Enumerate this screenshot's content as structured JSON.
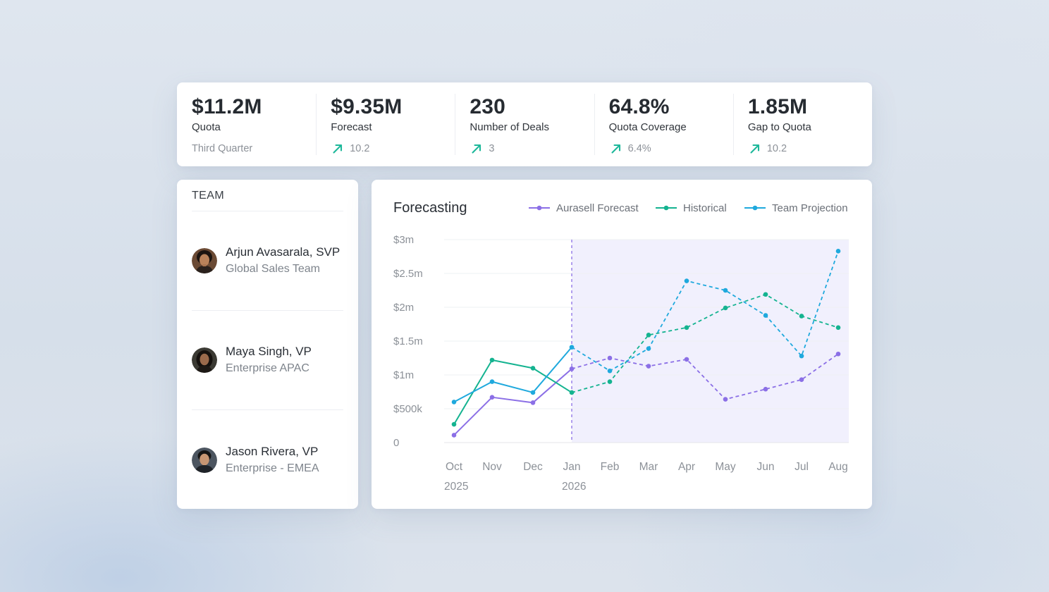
{
  "kpis": [
    {
      "value": "$11.2M",
      "label": "Quota",
      "sub": "Third Quarter",
      "trend": false
    },
    {
      "value": "$9.35M",
      "label": "Forecast",
      "sub": "10.2",
      "trend": true
    },
    {
      "value": "230",
      "label": "Number of Deals",
      "sub": "3",
      "trend": true
    },
    {
      "value": "64.8%",
      "label": "Quota Coverage",
      "sub": "6.4%",
      "trend": true
    },
    {
      "value": "1.85M",
      "label": "Gap to Quota",
      "sub": "10.2",
      "trend": true
    }
  ],
  "team": {
    "title": "TEAM",
    "members": [
      {
        "name": "Arjun Avasarala, SVP",
        "team": "Global Sales Team"
      },
      {
        "name": "Maya Singh, VP",
        "team": "Enterprise APAC"
      },
      {
        "name": "Jason Rivera, VP",
        "team": "Enterprise - EMEA"
      }
    ]
  },
  "colors": {
    "accent_green": "#1db89a",
    "forecast": "#8b6fe6",
    "historical": "#14b390",
    "projection": "#1fa9dd",
    "forecast_band": "#f1f0fd"
  },
  "chart_data": {
    "type": "line",
    "title": "Forecasting",
    "categories": [
      "Oct",
      "Nov",
      "Dec",
      "Jan",
      "Feb",
      "Mar",
      "Apr",
      "May",
      "Jun",
      "Jul",
      "Aug"
    ],
    "year_labels": [
      {
        "category": "Oct",
        "label": "2025"
      },
      {
        "category": "Jan",
        "label": "2026"
      }
    ],
    "y_ticks": [
      {
        "value": 0,
        "label": "0"
      },
      {
        "value": 0.5,
        "label": "$500k"
      },
      {
        "value": 1,
        "label": "$1m"
      },
      {
        "value": 1.5,
        "label": "$1.5m"
      },
      {
        "value": 2,
        "label": "$2m"
      },
      {
        "value": 2.5,
        "label": "$2.5m"
      },
      {
        "value": 3,
        "label": "$3m"
      }
    ],
    "ylim": [
      0,
      3
    ],
    "y_unit": "$m",
    "forecast_start": "Jan",
    "grid": true,
    "legend_position": "top-right",
    "series": [
      {
        "name": "Aurasell Forecast",
        "color": "#8b6fe6",
        "values": [
          0.11,
          0.67,
          0.59,
          1.09,
          1.25,
          1.13,
          1.23,
          0.64,
          0.79,
          0.93,
          1.31
        ]
      },
      {
        "name": "Historical",
        "color": "#14b390",
        "values": [
          0.27,
          1.22,
          1.1,
          0.74,
          0.9,
          1.59,
          1.7,
          1.99,
          2.19,
          1.87,
          1.7
        ]
      },
      {
        "name": "Team Projection",
        "color": "#1fa9dd",
        "values": [
          0.6,
          0.9,
          0.74,
          1.41,
          1.06,
          1.39,
          2.39,
          2.25,
          1.88,
          1.28,
          2.83
        ]
      }
    ]
  }
}
